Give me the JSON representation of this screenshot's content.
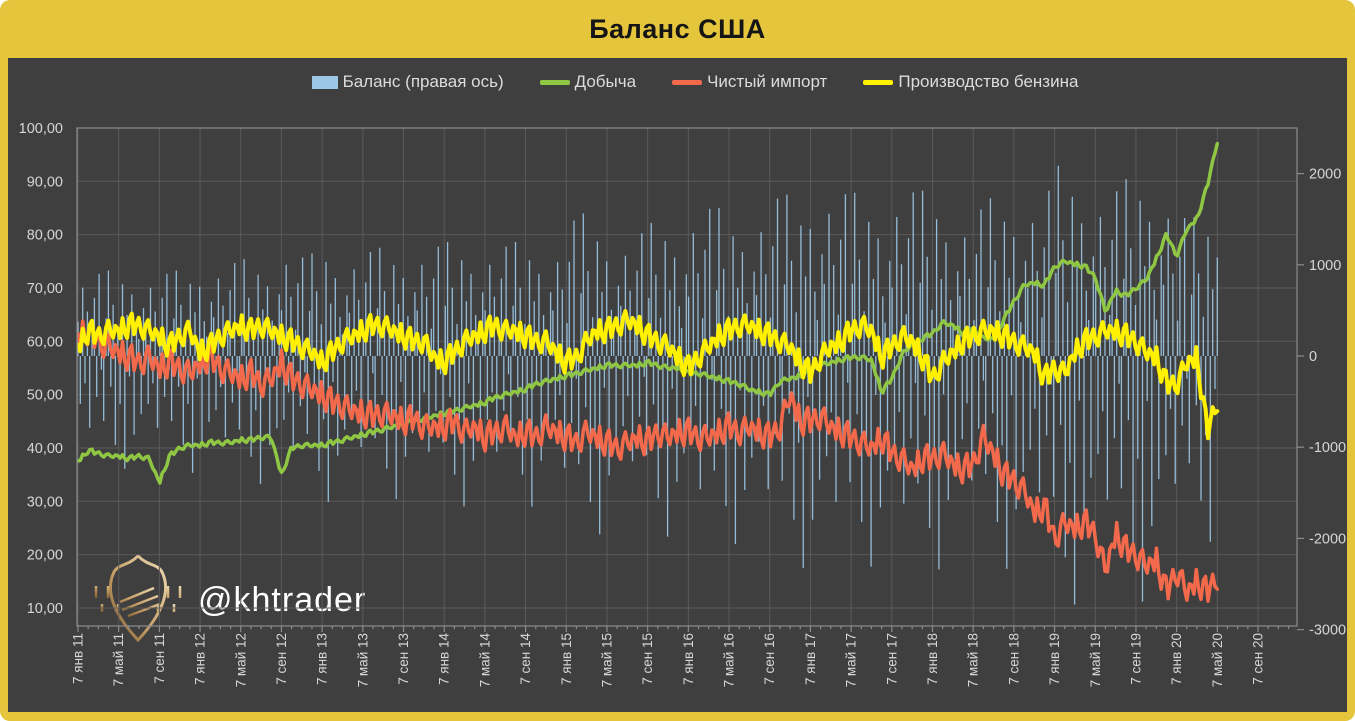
{
  "frame": {
    "title": "Баланс США",
    "gold_color": "#E4C53C",
    "plot_bg_color": "#3F3F3F",
    "grid_color": "#5A5A5A",
    "axis_color": "#8C8C8C",
    "tick_text_color": "#D6D6D6"
  },
  "watermark": {
    "text": "@khtrader"
  },
  "legend": [
    {
      "label": "Баланс (правая ось)",
      "type": "bar",
      "color": "#9CC7E5"
    },
    {
      "label": "Добыча",
      "type": "line",
      "color": "#8FC643"
    },
    {
      "label": "Чистый импорт",
      "type": "line",
      "color": "#F2694B"
    },
    {
      "label": "Производство бензина",
      "type": "line",
      "color": "#FFF100"
    }
  ],
  "chart_data": {
    "type": "combo: weekly bars (right axis) + 3 lines (left axis)",
    "title": "Баланс США",
    "x_start": "7 янв 2011",
    "x_end": "май 2020",
    "x_resolution": "weekly data, monthly values listed below",
    "x_tick_labels": [
      "7 янв 11",
      "7 май 11",
      "7 сен 11",
      "7 янв 12",
      "7 май 12",
      "7 сен 12",
      "7 янв 13",
      "7 май 13",
      "7 сен 13",
      "7 янв 14",
      "7 май 14",
      "7 сен 14",
      "7 янв 15",
      "7 май 15",
      "7 сен 15",
      "7 янв 16",
      "7 май 16",
      "7 сен 16",
      "7 янв 17",
      "7 май 17",
      "7 сен 17",
      "7 янв 18",
      "7 май 18",
      "7 сен 18",
      "7 янв 19",
      "7 май 19",
      "7 сен 19",
      "7 янв 20",
      "7 май 20",
      "7 сен 20"
    ],
    "left_axis": {
      "tick_labels": [
        "100,00",
        "90,00",
        "80,00",
        "70,00",
        "60,00",
        "50,00",
        "40,00",
        "30,00",
        "20,00",
        "10,00"
      ],
      "tick_values": [
        100,
        90,
        80,
        70,
        60,
        50,
        40,
        30,
        20,
        10
      ],
      "grid": true
    },
    "right_axis": {
      "tick_labels": [
        "2000",
        "1000",
        "0",
        "-1000",
        "-2000",
        "-3000"
      ],
      "tick_values": [
        2000,
        1000,
        0,
        -1000,
        -2000,
        -3000
      ],
      "range_top": 2500,
      "range_bottom": -3000
    },
    "series": [
      {
        "name": "Добыча",
        "axis": "left",
        "color": "#8FC643",
        "width": 3.5,
        "monthly": [
          37.5,
          39.5,
          39,
          38.5,
          38.5,
          38,
          38.5,
          38,
          33.5,
          38.5,
          40,
          40.5,
          40.5,
          41,
          41,
          41,
          41.5,
          41.5,
          42,
          42,
          35,
          40,
          40.5,
          40.5,
          40.5,
          41,
          41.5,
          42,
          42.5,
          43,
          43.5,
          44,
          44.5,
          45,
          45.5,
          46,
          46.5,
          47,
          47.5,
          48,
          48.5,
          49.5,
          50,
          50.5,
          51,
          52,
          52.5,
          53,
          53.5,
          54,
          54.5,
          55,
          55.5,
          55.5,
          55.5,
          55.5,
          56,
          55.5,
          55,
          55,
          54,
          54,
          53.5,
          53,
          52.5,
          52,
          51,
          50.5,
          50,
          52.5,
          53,
          53.5,
          54.5,
          55.5,
          56,
          56.5,
          57,
          57,
          56.5,
          50.5,
          53,
          57.5,
          59.5,
          60.5,
          61.5,
          63.5,
          63,
          61.5,
          62.5,
          60.5,
          60.5,
          64,
          67.5,
          70.5,
          71,
          70.5,
          74,
          75,
          74.5,
          74,
          72,
          65.5,
          69.5,
          68.5,
          70,
          71.5,
          75.5,
          80,
          76,
          81,
          83,
          89,
          97.5
        ]
      },
      {
        "name": "Чистый импорт",
        "axis": "left",
        "color": "#F2694B",
        "width": 3.5,
        "monthly": [
          61,
          62,
          60,
          59,
          58,
          57,
          56,
          57,
          55,
          56,
          55,
          54,
          56,
          57,
          55,
          54,
          53,
          54,
          52,
          53,
          56,
          53,
          52,
          51,
          50,
          48.5,
          48,
          47,
          46.5,
          46,
          46.5,
          46,
          45,
          45.5,
          44,
          44,
          44,
          45,
          43,
          44,
          42,
          43,
          44,
          42,
          43,
          42,
          44,
          43,
          42,
          41,
          43,
          42,
          41,
          40,
          41,
          42,
          41,
          43,
          42,
          43,
          43,
          42,
          42,
          43,
          44,
          43,
          44,
          43,
          42,
          44,
          50,
          45,
          45,
          46,
          44,
          43,
          42,
          41,
          40,
          42,
          39,
          38,
          36,
          38,
          38,
          39,
          37,
          36,
          37,
          42,
          39,
          35,
          34,
          32,
          28,
          29,
          23,
          26,
          25,
          26,
          24,
          17,
          24,
          21,
          20,
          18,
          19,
          13,
          17,
          13,
          15,
          13,
          16
        ]
      },
      {
        "name": "Производство бензина",
        "axis": "left",
        "color": "#FFF100",
        "width": 4,
        "monthly": [
          59,
          62,
          61,
          62,
          62,
          63,
          63,
          62,
          61,
          59,
          61,
          62,
          58,
          59,
          61,
          62,
          63,
          62,
          63,
          62,
          61,
          60,
          59,
          58,
          56,
          58,
          60,
          61,
          62,
          63,
          63,
          62,
          61,
          60,
          60,
          57,
          56,
          58,
          60,
          61,
          62,
          63,
          62,
          62,
          61,
          60,
          60,
          58,
          56,
          57,
          60,
          62,
          62,
          63,
          64,
          63,
          61,
          60,
          59,
          57,
          55,
          57,
          59,
          61,
          62,
          63,
          63,
          62,
          61,
          60,
          59,
          56,
          54,
          57,
          59,
          60,
          62,
          63,
          62,
          57,
          59,
          61,
          60,
          57,
          53,
          56,
          58,
          60,
          61,
          62,
          62,
          61,
          60,
          59,
          58,
          53,
          55,
          54,
          58,
          60,
          61,
          62,
          62,
          61,
          60,
          58,
          57,
          52,
          52,
          56,
          57,
          43,
          49
        ]
      }
    ],
    "bars": {
      "name": "Баланс",
      "axis": "right",
      "color": "#9CC7E5",
      "bar_width": 1.3,
      "note": "weekly bar = monthly_amplitude interpolated × weekly_pattern",
      "monthly_amplitude": [
        750,
        750,
        750,
        750,
        750,
        750,
        750,
        750,
        750,
        750,
        750,
        750,
        850,
        850,
        850,
        850,
        850,
        850,
        850,
        850,
        1000,
        1000,
        900,
        900,
        1000,
        950,
        950,
        950,
        950,
        950,
        950,
        950,
        950,
        1000,
        1000,
        1000,
        1000,
        1000,
        1000,
        1000,
        1000,
        1000,
        1000,
        1000,
        1000,
        1000,
        1000,
        1000,
        1200,
        1250,
        1250,
        1200,
        1150,
        1100,
        1100,
        1100,
        1150,
        1200,
        1200,
        1200,
        1300,
        1400,
        1350,
        1300,
        1250,
        1250,
        1300,
        1350,
        1400,
        1450,
        1400,
        1350,
        1550,
        1600,
        1550,
        1500,
        1450,
        1400,
        1400,
        1450,
        1500,
        1550,
        1500,
        1450,
        1450,
        1400,
        1350,
        1300,
        1300,
        1350,
        1400,
        1400,
        1450,
        1500,
        1450,
        1400,
        1650,
        1700,
        1650,
        1600,
        1550,
        1500,
        1500,
        1550,
        1600,
        1650,
        1600,
        1550,
        1300,
        1250,
        1200,
        1250,
        1200
      ],
      "weekly_pattern": [
        0.5,
        -0.7,
        1.0,
        -0.4,
        0.65,
        -1.05,
        0.3,
        0.85,
        -0.6,
        1.2,
        -0.2,
        -0.95,
        0.55,
        1.25,
        -0.45,
        0.75,
        -1.3,
        0.35,
        -0.7,
        1.05,
        -1.65,
        0.6,
        -0.3,
        0.9,
        -1.15,
        0.45,
        0.25,
        -0.85,
        0.7
      ]
    },
    "line_noise": {
      "pattern": [
        0.15,
        -0.7,
        0.9,
        -0.45,
        -1.0,
        0.55,
        1.0,
        -0.75,
        0.1,
        0.65,
        -0.5,
        -0.95,
        0.35,
        0.85,
        -0.15,
        -0.6,
        0.4
      ],
      "amplitudes": [
        0.45,
        2.6,
        2.2
      ]
    }
  }
}
